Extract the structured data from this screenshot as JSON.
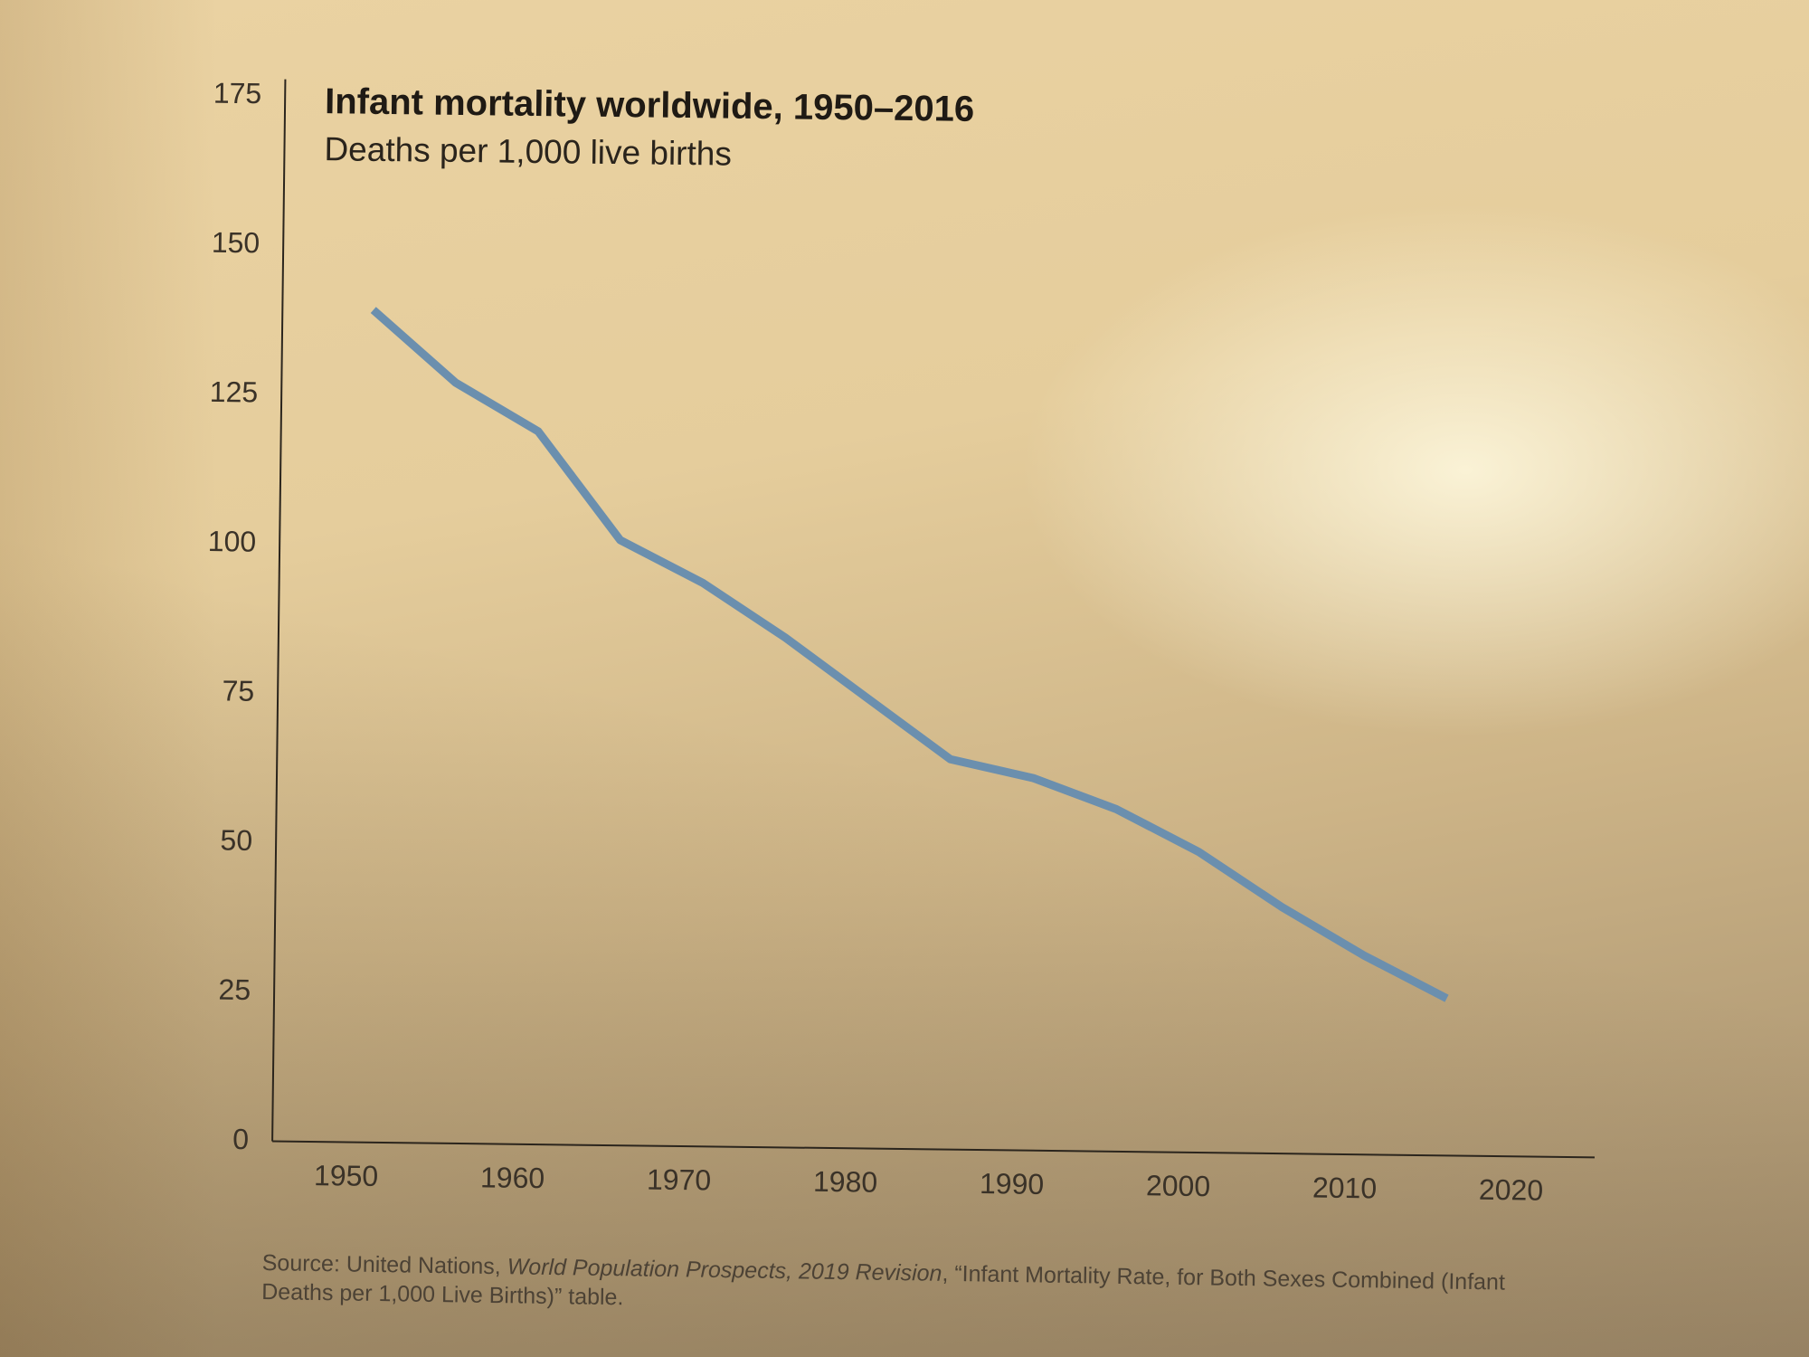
{
  "chart_data": {
    "type": "line",
    "title": "Infant mortality worldwide, 1950–2016",
    "subtitle": "Deaths per 1,000 live births",
    "xlabel": "",
    "ylabel": "",
    "xlim": [
      1945,
      2025
    ],
    "ylim": [
      0,
      175
    ],
    "x_ticks": [
      1950,
      1960,
      1970,
      1980,
      1990,
      2000,
      2010,
      2020
    ],
    "y_ticks": [
      0,
      25,
      50,
      75,
      100,
      125,
      150,
      175
    ],
    "grid": false,
    "series": [
      {
        "name": "Infant mortality",
        "color": "#6b8fae",
        "x": [
          1951,
          1956,
          1961,
          1966,
          1971,
          1976,
          1981,
          1986,
          1991,
          1996,
          2001,
          2006,
          2011,
          2016
        ],
        "y": [
          139,
          127,
          119,
          101,
          94,
          85,
          75,
          65,
          62,
          57,
          50,
          41,
          33,
          26
        ]
      }
    ]
  },
  "source": {
    "prefix": "Source: United Nations, ",
    "publication": "World Population Prospects, 2019 Revision",
    "suffix": ", “Infant Mortality Rate, for Both Sexes Combined (Infant Deaths per 1,000 Live Births)” table."
  },
  "colors": {
    "axis": "#2b251d",
    "line": "#6b8fae"
  }
}
